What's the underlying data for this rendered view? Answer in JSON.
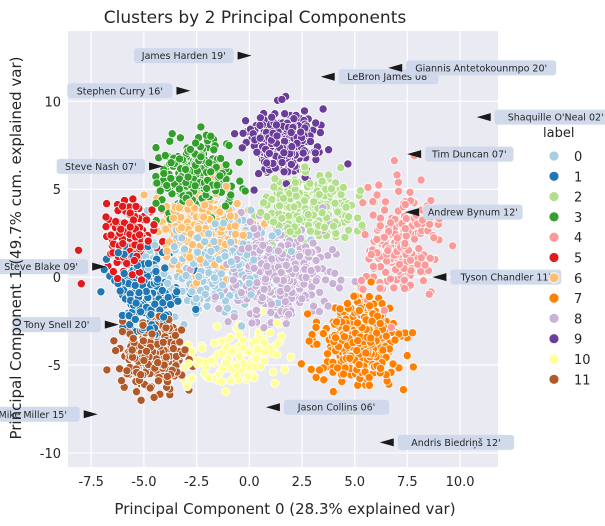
{
  "chart_data": {
    "type": "scatter",
    "title": "Clusters by 2 Principal Components",
    "xlabel": "Principal Component 0 (28.3% explained var)",
    "ylabel": "Principal Component 1 (49.7% cum. explained var)",
    "xlim": [
      -8.6,
      11.8
    ],
    "ylim": [
      -10.8,
      14.0
    ],
    "xticks": [
      "-7.5",
      "-5.0",
      "-2.5",
      "0.0",
      "2.5",
      "5.0",
      "7.5",
      "10.0"
    ],
    "xtick_values": [
      -7.5,
      -5.0,
      -2.5,
      0.0,
      2.5,
      5.0,
      7.5,
      10.0
    ],
    "yticks": [
      "-10",
      "-5",
      "0",
      "5",
      "10"
    ],
    "ytick_values": [
      -10,
      -5,
      0,
      5,
      10
    ],
    "grid": true,
    "legend_title": "label",
    "legend_position": "right",
    "series": [
      {
        "name": "0",
        "color": "#a6cee3",
        "center": [
          -1.5,
          1.0
        ],
        "spread": [
          2.5,
          2.6
        ],
        "count": 380
      },
      {
        "name": "1",
        "color": "#1f78b4",
        "center": [
          -4.8,
          -0.8
        ],
        "spread": [
          1.4,
          2.1
        ],
        "count": 230
      },
      {
        "name": "2",
        "color": "#b2df8a",
        "center": [
          2.8,
          4.0
        ],
        "spread": [
          2.0,
          1.6
        ],
        "count": 260
      },
      {
        "name": "3",
        "color": "#33a02c",
        "center": [
          -2.6,
          5.6
        ],
        "spread": [
          1.5,
          1.9
        ],
        "count": 300
      },
      {
        "name": "4",
        "color": "#fb9a99",
        "center": [
          7.2,
          1.8
        ],
        "spread": [
          1.7,
          2.8
        ],
        "count": 200
      },
      {
        "name": "5",
        "color": "#e31a1c",
        "center": [
          -5.6,
          2.4
        ],
        "spread": [
          1.1,
          1.8
        ],
        "count": 140
      },
      {
        "name": "6",
        "color": "#fdbf6f",
        "center": [
          -2.3,
          2.5
        ],
        "spread": [
          1.8,
          2.5
        ],
        "count": 320
      },
      {
        "name": "7",
        "color": "#ff7f00",
        "center": [
          5.3,
          -3.7
        ],
        "spread": [
          1.7,
          2.2
        ],
        "count": 420
      },
      {
        "name": "8",
        "color": "#cab2d6",
        "center": [
          1.2,
          0.3
        ],
        "spread": [
          2.2,
          2.4
        ],
        "count": 420
      },
      {
        "name": "9",
        "color": "#6a3d9a",
        "center": [
          1.6,
          7.7
        ],
        "spread": [
          1.5,
          1.7
        ],
        "count": 260
      },
      {
        "name": "10",
        "color": "#ffff99",
        "center": [
          -0.8,
          -4.6
        ],
        "spread": [
          2.0,
          1.6
        ],
        "count": 120
      },
      {
        "name": "11",
        "color": "#b15928",
        "center": [
          -4.5,
          -4.4
        ],
        "spread": [
          1.4,
          1.7
        ],
        "count": 270
      }
    ],
    "annotations": [
      {
        "text": "James Harden 19'",
        "x": 0.3,
        "y": 12.6,
        "side": "left"
      },
      {
        "text": "LeBron James 08'",
        "x": 3.2,
        "y": 11.4,
        "side": "right"
      },
      {
        "text": "Giannis Antetokounmpo 20'",
        "x": 6.4,
        "y": 11.9,
        "side": "right"
      },
      {
        "text": "Stephen Curry 16'",
        "x": -2.6,
        "y": 10.6,
        "side": "left"
      },
      {
        "text": "Shaquille O'Neal 02'",
        "x": 10.6,
        "y": 9.1,
        "side": "right"
      },
      {
        "text": "Steve Nash 07'",
        "x": -3.9,
        "y": 6.3,
        "side": "left"
      },
      {
        "text": "Tim Duncan 07'",
        "x": 7.3,
        "y": 7.0,
        "side": "right"
      },
      {
        "text": "Andrew Bynum 12'",
        "x": 7.2,
        "y": 3.7,
        "side": "right"
      },
      {
        "text": "Steve Blake 09'",
        "x": -6.6,
        "y": 0.6,
        "side": "left"
      },
      {
        "text": "Tyson Chandler 11'",
        "x": 8.5,
        "y": 0.0,
        "side": "right"
      },
      {
        "text": "Tony Snell 20'",
        "x": -6.0,
        "y": -2.7,
        "side": "left"
      },
      {
        "text": "Mike Miller 15'",
        "x": -7.0,
        "y": -7.8,
        "side": "left"
      },
      {
        "text": "Jason Collins 06'",
        "x": 0.6,
        "y": -7.4,
        "side": "right"
      },
      {
        "text": "Andris Biedriņš 12'",
        "x": 6.0,
        "y": -9.4,
        "side": "right"
      }
    ]
  }
}
